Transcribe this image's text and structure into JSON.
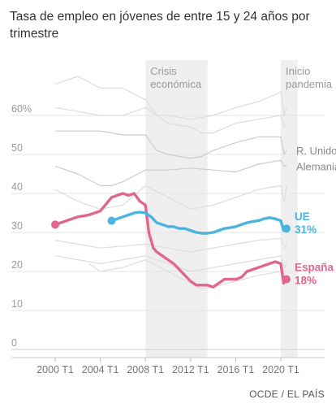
{
  "title": "Tasa de empleo en jóvenes de entre 15 y 24 años por trimestre",
  "source": "OCDE / EL PAÍS",
  "chart_data": {
    "type": "line",
    "ylim": [
      0,
      70
    ],
    "xlim": [
      1998.5,
      2021.5
    ],
    "y_ticks": [
      0,
      10,
      20,
      30,
      40,
      50,
      60
    ],
    "y_tick_labels": [
      "0",
      "10",
      "20",
      "30",
      "40",
      "50",
      "60%"
    ],
    "x_ticks": [
      2000,
      2004,
      2008,
      2012,
      2016,
      2020
    ],
    "x_tick_labels": [
      "2000 T1",
      "2004 T1",
      "2008 T1",
      "2012 T1",
      "2016 T1",
      "2020 T1"
    ],
    "grid": true,
    "shaded_periods": [
      {
        "label": "Crisis\neconómica",
        "start": 2008.0,
        "end": 2013.5
      },
      {
        "label": "Inicio\npandemia",
        "start": 2020.0,
        "end": 2021.5
      }
    ],
    "series": [
      {
        "name": "España",
        "value_label": "18%",
        "color": "#e0668c",
        "highlight": true,
        "x": [
          2000.0,
          2001.0,
          2002.0,
          2003.0,
          2004.0,
          2005.0,
          2005.5,
          2006.0,
          2006.5,
          2007.0,
          2007.5,
          2008.0,
          2008.3,
          2008.7,
          2009.0,
          2009.5,
          2010.0,
          2010.5,
          2011.0,
          2011.5,
          2012.0,
          2012.5,
          2013.0,
          2013.5,
          2014.0,
          2015.0,
          2015.5,
          2016.0,
          2016.5,
          2017.0,
          2017.5,
          2018.0,
          2018.5,
          2019.0,
          2019.5,
          2020.0,
          2020.25,
          2020.5
        ],
        "y": [
          32,
          33,
          34,
          34.5,
          35.5,
          39,
          39.5,
          40,
          39.5,
          40,
          38,
          37,
          30,
          26,
          25,
          24,
          23,
          22,
          20.5,
          19,
          17.5,
          16.5,
          16.5,
          16.5,
          16,
          18,
          18,
          18,
          18.5,
          20,
          20.5,
          21,
          21.5,
          22,
          22.5,
          22,
          17,
          18
        ]
      },
      {
        "name": "UE",
        "value_label": "31%",
        "color": "#4bb3e0",
        "highlight": true,
        "x": [
          2005.0,
          2005.5,
          2006.0,
          2006.5,
          2007.0,
          2007.5,
          2008.0,
          2008.5,
          2009.0,
          2009.5,
          2010.0,
          2010.5,
          2011.0,
          2011.5,
          2012.0,
          2012.5,
          2013.0,
          2013.5,
          2014.0,
          2014.5,
          2015.0,
          2015.5,
          2016.0,
          2016.5,
          2017.0,
          2017.5,
          2018.0,
          2018.5,
          2019.0,
          2019.5,
          2020.0,
          2020.25,
          2020.5
        ],
        "y": [
          33,
          33.5,
          34,
          34.5,
          35,
          35.2,
          35,
          34,
          32.5,
          32,
          31.5,
          31.5,
          31,
          31,
          30.5,
          30,
          29.8,
          29.8,
          30,
          30.5,
          31,
          31.2,
          31.5,
          32,
          32.5,
          32.8,
          33,
          33.5,
          33.8,
          33.5,
          33,
          30.5,
          31
        ]
      },
      {
        "name": "R. Unido",
        "color": "#cccccc",
        "highlight": false,
        "x": [
          2000,
          2002,
          2004,
          2006,
          2008,
          2009,
          2010,
          2011,
          2012,
          2013,
          2014,
          2016,
          2018,
          2019,
          2020,
          2020.3,
          2020.5
        ],
        "y": [
          56,
          56,
          56,
          55,
          55,
          51,
          50,
          49.5,
          49,
          49.5,
          51,
          53,
          54.5,
          54.5,
          54.5,
          50,
          51
        ]
      },
      {
        "name": "Alemania",
        "color": "#cccccc",
        "highlight": false,
        "x": [
          2000,
          2002,
          2004,
          2005,
          2006,
          2008,
          2009,
          2010,
          2012,
          2014,
          2016,
          2018,
          2019,
          2020,
          2020.3,
          2020.5
        ],
        "y": [
          47,
          45,
          42,
          42,
          43,
          46,
          46,
          46,
          46.5,
          46,
          45.5,
          47.5,
          48,
          48.5,
          47,
          47
        ]
      },
      {
        "name": "",
        "color": "#dddddd",
        "highlight": false,
        "x": [
          2000,
          2002,
          2004,
          2006,
          2008,
          2009,
          2010,
          2012,
          2014,
          2016,
          2018,
          2020,
          2020.3,
          2020.5
        ],
        "y": [
          68,
          70,
          67,
          67,
          64,
          60,
          60,
          59,
          60,
          62,
          63.5,
          66,
          60,
          62
        ]
      },
      {
        "name": "",
        "color": "#dddddd",
        "highlight": false,
        "x": [
          2000,
          2002,
          2004,
          2006,
          2008,
          2010,
          2012,
          2013,
          2014,
          2016,
          2018,
          2020,
          2020.3,
          2020.5
        ],
        "y": [
          62,
          61,
          60,
          60,
          62,
          58,
          57,
          55.5,
          55.5,
          58,
          59,
          60,
          57,
          58
        ]
      },
      {
        "name": "",
        "color": "#dddddd",
        "highlight": false,
        "x": [
          2000,
          2002,
          2004,
          2006,
          2008,
          2010,
          2012,
          2014,
          2016,
          2018,
          2020,
          2020.3,
          2020.5
        ],
        "y": [
          41,
          38,
          36,
          37,
          42,
          39,
          36,
          37,
          39,
          41,
          42,
          38,
          42
        ]
      },
      {
        "name": "",
        "color": "#dddddd",
        "highlight": false,
        "x": [
          2000,
          2002,
          2004,
          2006,
          2008,
          2010,
          2012,
          2014,
          2016,
          2018,
          2020,
          2020.3,
          2020.5
        ],
        "y": [
          28,
          27,
          26,
          26.5,
          27,
          26,
          25,
          26,
          27,
          28,
          28.5,
          26,
          27
        ]
      },
      {
        "name": "",
        "color": "#dddddd",
        "highlight": false,
        "x": [
          2000,
          2002,
          2004,
          2006,
          2008,
          2010,
          2012,
          2014,
          2016,
          2018,
          2020,
          2020.3,
          2020.5
        ],
        "y": [
          24,
          23,
          22,
          23,
          24,
          22,
          20,
          21,
          22,
          23,
          24,
          21,
          22
        ]
      },
      {
        "name": "",
        "color": "#dddddd",
        "highlight": false,
        "x": [
          2003,
          2004,
          2006,
          2008,
          2010,
          2012,
          2013,
          2014,
          2016,
          2018,
          2020,
          2020.3,
          2020.5
        ],
        "y": [
          22,
          20,
          21,
          23,
          20,
          17,
          15.5,
          16,
          17.5,
          19,
          20,
          17,
          18
        ]
      }
    ]
  }
}
